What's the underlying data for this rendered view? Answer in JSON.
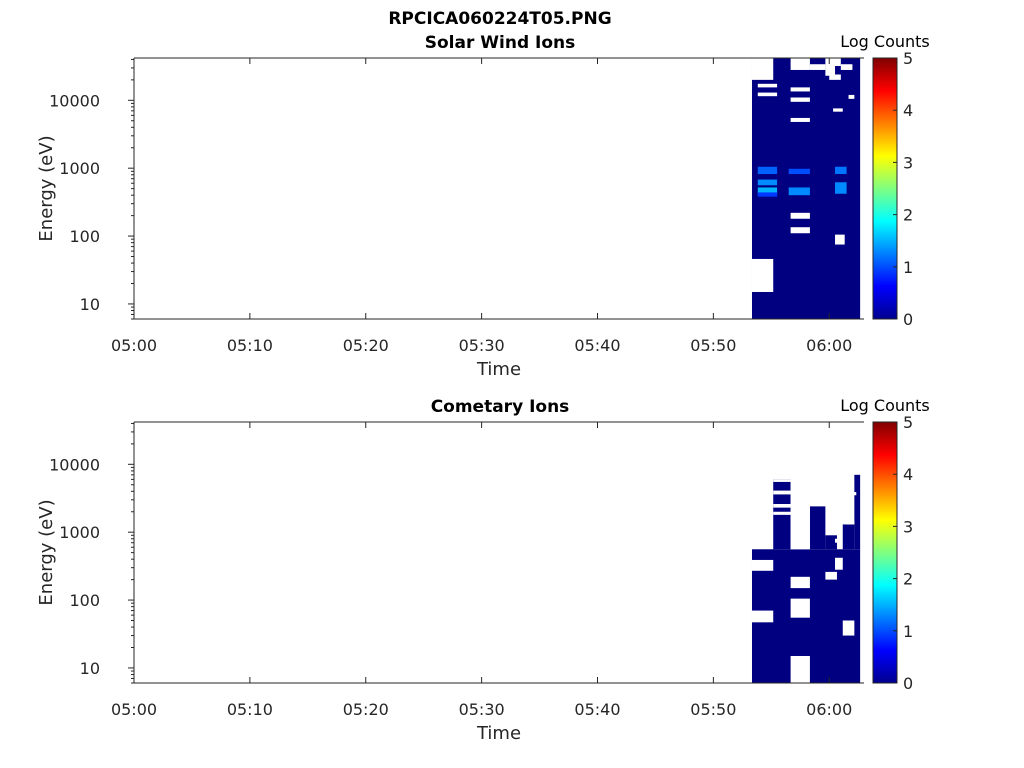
{
  "figure": {
    "title": "RPCICA060224T05.PNG"
  },
  "chart_data": [
    {
      "type": "heatmap",
      "title": "Solar Wind Ions",
      "xlabel": "Time",
      "ylabel": "Energy (eV)",
      "x_ticks": [
        "05:00",
        "05:10",
        "05:20",
        "05:30",
        "05:40",
        "05:50",
        "06:00"
      ],
      "xlim": [
        "05:00",
        "06:03"
      ],
      "y_scale": "log",
      "y_ticks": [
        10,
        100,
        1000,
        10000
      ],
      "ylim": [
        6,
        42000
      ],
      "colorbar": {
        "label": "Log Counts",
        "ticks": [
          0,
          1,
          2,
          3,
          4,
          5
        ],
        "range": [
          0,
          5
        ],
        "colormap": "jet"
      },
      "data_blocks": [
        {
          "t": [
            "05:53:20",
            "06:02:40"
          ],
          "e": [
            6,
            42000
          ],
          "log_counts": 0
        },
        {
          "t": [
            "05:53:50",
            "05:55:30"
          ],
          "e": [
            820,
            1050
          ],
          "log_counts": 1.1
        },
        {
          "t": [
            "05:53:50",
            "05:55:30"
          ],
          "e": [
            560,
            680
          ],
          "log_counts": 1.3
        },
        {
          "t": [
            "05:53:50",
            "05:55:30"
          ],
          "e": [
            400,
            520
          ],
          "log_counts": 1.5
        },
        {
          "t": [
            "05:53:50",
            "05:55:30"
          ],
          "e": [
            380,
            440
          ],
          "log_counts": 0.9
        },
        {
          "t": [
            "05:56:30",
            "05:58:20"
          ],
          "e": [
            820,
            980
          ],
          "log_counts": 1.0
        },
        {
          "t": [
            "05:56:30",
            "05:58:20"
          ],
          "e": [
            400,
            520
          ],
          "log_counts": 1.3
        },
        {
          "t": [
            "06:00:30",
            "06:01:30"
          ],
          "e": [
            820,
            1050
          ],
          "log_counts": 1.2
        },
        {
          "t": [
            "06:00:30",
            "06:01:30"
          ],
          "e": [
            420,
            620
          ],
          "log_counts": 1.3
        }
      ],
      "gaps": [
        {
          "t": [
            "05:53:20",
            "05:55:10"
          ],
          "e": [
            15,
            46
          ]
        },
        {
          "t": [
            "05:53:20",
            "05:55:10"
          ],
          "e": [
            20000,
            42000
          ]
        },
        {
          "t": [
            "05:53:50",
            "05:55:30"
          ],
          "e": [
            15500,
            17500
          ]
        },
        {
          "t": [
            "05:53:50",
            "05:55:30"
          ],
          "e": [
            11500,
            13000
          ]
        },
        {
          "t": [
            "05:56:40",
            "05:58:20"
          ],
          "e": [
            28000,
            42000
          ]
        },
        {
          "t": [
            "05:56:40",
            "05:58:20"
          ],
          "e": [
            13500,
            15500
          ]
        },
        {
          "t": [
            "05:56:40",
            "05:58:20"
          ],
          "e": [
            9500,
            11000
          ]
        },
        {
          "t": [
            "05:56:40",
            "05:58:20"
          ],
          "e": [
            4800,
            5500
          ]
        },
        {
          "t": [
            "05:56:40",
            "05:58:20"
          ],
          "e": [
            180,
            220
          ]
        },
        {
          "t": [
            "05:56:40",
            "05:58:20"
          ],
          "e": [
            110,
            135
          ]
        },
        {
          "t": [
            "05:58:20",
            "05:59:40"
          ],
          "e": [
            28000,
            34000
          ]
        },
        {
          "t": [
            "05:59:40",
            "06:00:30"
          ],
          "e": [
            23000,
            42000
          ]
        },
        {
          "t": [
            "06:00:00",
            "06:01:00"
          ],
          "e": [
            32000,
            42000
          ]
        },
        {
          "t": [
            "06:00:00",
            "06:01:00"
          ],
          "e": [
            20000,
            24000
          ]
        },
        {
          "t": [
            "06:01:00",
            "06:02:00"
          ],
          "e": [
            28000,
            34000
          ]
        },
        {
          "t": [
            "06:00:20",
            "06:01:10"
          ],
          "e": [
            6800,
            7600
          ]
        },
        {
          "t": [
            "06:00:30",
            "06:01:20"
          ],
          "e": [
            75,
            105
          ]
        },
        {
          "t": [
            "06:01:40",
            "06:02:10"
          ],
          "e": [
            10500,
            12000
          ]
        }
      ]
    },
    {
      "type": "heatmap",
      "title": "Cometary Ions",
      "xlabel": "Time",
      "ylabel": "Energy (eV)",
      "x_ticks": [
        "05:00",
        "05:10",
        "05:20",
        "05:30",
        "05:40",
        "05:50",
        "06:00"
      ],
      "xlim": [
        "05:00",
        "06:03"
      ],
      "y_scale": "log",
      "y_ticks": [
        10,
        100,
        1000,
        10000
      ],
      "ylim": [
        6,
        42000
      ],
      "colorbar": {
        "label": "Log Counts",
        "ticks": [
          0,
          1,
          2,
          3,
          4,
          5
        ],
        "range": [
          0,
          5
        ],
        "colormap": "jet"
      },
      "data_blocks": [
        {
          "t": [
            "05:53:20",
            "06:02:40"
          ],
          "e": [
            6,
            560
          ],
          "log_counts": 0
        },
        {
          "t": [
            "05:55:10",
            "05:56:40"
          ],
          "e": [
            560,
            6000
          ],
          "log_counts": 0
        },
        {
          "t": [
            "05:58:20",
            "05:59:40"
          ],
          "e": [
            560,
            2400
          ],
          "log_counts": 0
        },
        {
          "t": [
            "05:59:40",
            "06:00:40"
          ],
          "e": [
            560,
            900
          ],
          "log_counts": 0
        },
        {
          "t": [
            "06:01:10",
            "06:02:10"
          ],
          "e": [
            560,
            1300
          ],
          "log_counts": 0
        },
        {
          "t": [
            "06:02:10",
            "06:02:40"
          ],
          "e": [
            560,
            7000
          ],
          "log_counts": 0
        }
      ],
      "gaps": [
        {
          "t": [
            "05:53:20",
            "05:55:10"
          ],
          "e": [
            270,
            390
          ]
        },
        {
          "t": [
            "05:53:20",
            "05:55:10"
          ],
          "e": [
            47,
            70
          ]
        },
        {
          "t": [
            "05:56:40",
            "05:58:20"
          ],
          "e": [
            6,
            15
          ]
        },
        {
          "t": [
            "05:56:40",
            "05:58:20"
          ],
          "e": [
            55,
            105
          ]
        },
        {
          "t": [
            "05:56:40",
            "05:58:20"
          ],
          "e": [
            150,
            220
          ]
        },
        {
          "t": [
            "05:56:40",
            "05:58:20"
          ],
          "e": [
            560,
            6000
          ]
        },
        {
          "t": [
            "05:59:40",
            "06:00:40"
          ],
          "e": [
            200,
            260
          ]
        },
        {
          "t": [
            "06:00:30",
            "06:01:10"
          ],
          "e": [
            280,
            420
          ]
        },
        {
          "t": [
            "06:01:10",
            "06:02:10"
          ],
          "e": [
            30,
            50
          ]
        }
      ],
      "stripes": [
        {
          "t": [
            "05:55:10",
            "05:56:40"
          ],
          "e": [
            5500,
            6000
          ]
        },
        {
          "t": [
            "05:55:10",
            "05:56:40"
          ],
          "e": [
            3600,
            4100
          ]
        },
        {
          "t": [
            "05:55:10",
            "05:56:40"
          ],
          "e": [
            2300,
            2600
          ]
        },
        {
          "t": [
            "05:55:10",
            "05:56:40"
          ],
          "e": [
            1800,
            2000
          ]
        },
        {
          "t": [
            "05:58:20",
            "05:59:40"
          ],
          "e": [
            7400,
            8200
          ]
        },
        {
          "t": [
            "05:58:20",
            "05:59:40"
          ],
          "e": [
            4300,
            4800
          ]
        },
        {
          "t": [
            "05:58:20",
            "05:59:40"
          ],
          "e": [
            3100,
            3500
          ]
        },
        {
          "t": [
            "06:00:10",
            "06:01:10"
          ],
          "e": [
            5600,
            6100
          ]
        },
        {
          "t": [
            "06:00:10",
            "06:01:10"
          ],
          "e": [
            3100,
            3500
          ]
        },
        {
          "t": [
            "06:00:20",
            "06:00:50"
          ],
          "e": [
            2400,
            2700
          ]
        },
        {
          "t": [
            "06:01:10",
            "06:02:00"
          ],
          "e": [
            9500,
            10500
          ]
        },
        {
          "t": [
            "06:01:10",
            "06:02:00"
          ],
          "e": [
            7200,
            8000
          ]
        },
        {
          "t": [
            "06:01:20",
            "06:02:00"
          ],
          "e": [
            4200,
            4700
          ]
        },
        {
          "t": [
            "06:00:40",
            "06:01:20"
          ],
          "e": [
            2900,
            3300
          ]
        },
        {
          "t": [
            "06:01:40",
            "06:02:20"
          ],
          "e": [
            3500,
            3900
          ]
        },
        {
          "t": [
            "06:01:30",
            "06:02:00"
          ],
          "e": [
            1800,
            2100
          ]
        },
        {
          "t": [
            "06:01:30",
            "06:02:10"
          ],
          "e": [
            1300,
            1500
          ]
        },
        {
          "t": [
            "06:00:30",
            "06:01:00"
          ],
          "e": [
            700,
            800
          ]
        }
      ]
    }
  ]
}
